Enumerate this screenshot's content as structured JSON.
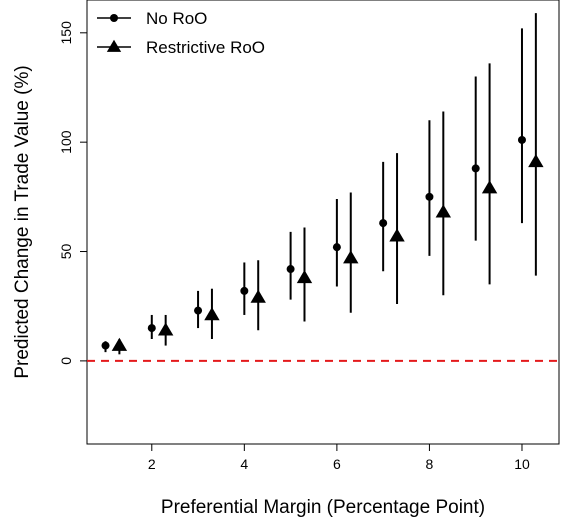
{
  "chart_data": {
    "type": "scatter",
    "title": "",
    "xlabel": "Preferential Margin (Percentage Point)",
    "ylabel": "Predicted Change in Trade Value (%)",
    "xlim": [
      0.6,
      10.8
    ],
    "ylim": [
      -38,
      165
    ],
    "xticks": [
      2,
      4,
      6,
      8,
      10
    ],
    "yticks": [
      0,
      50,
      100,
      150
    ],
    "reference_line": {
      "y": 0,
      "color": "#e41a1c",
      "style": "dashed"
    },
    "legend": {
      "position": "top-left"
    },
    "series": [
      {
        "name": "No RoO",
        "marker": "circle",
        "color": "#000000",
        "x": [
          1,
          2,
          3,
          4,
          5,
          6,
          7,
          8,
          9,
          10
        ],
        "y": [
          7,
          15,
          23,
          32,
          42,
          52,
          63,
          75,
          88,
          101
        ],
        "lower": [
          4,
          10,
          15,
          21,
          28,
          34,
          41,
          48,
          55,
          63
        ],
        "upper": [
          9,
          21,
          32,
          45,
          59,
          74,
          91,
          110,
          130,
          152
        ]
      },
      {
        "name": "Restrictive RoO",
        "marker": "triangle",
        "color": "#000000",
        "x": [
          1.3,
          2.3,
          3.3,
          4.3,
          5.3,
          6.3,
          7.3,
          8.3,
          9.3,
          10.3
        ],
        "y": [
          7,
          14,
          21,
          29,
          38,
          47,
          57,
          68,
          79,
          91
        ],
        "lower": [
          3,
          7,
          10,
          14,
          18,
          22,
          26,
          30,
          35,
          39
        ],
        "upper": [
          10,
          21,
          33,
          46,
          61,
          77,
          95,
          114,
          136,
          159
        ]
      }
    ]
  }
}
